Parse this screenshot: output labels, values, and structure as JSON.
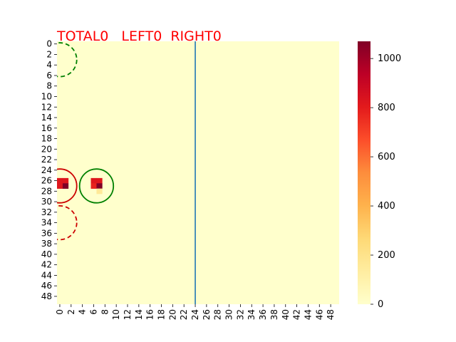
{
  "title": {
    "total": "TOTAL0",
    "left": "LEFT0",
    "right": "RIGHT0",
    "color": "#ff0000"
  },
  "chart_data": {
    "type": "heatmap",
    "rows": 50,
    "cols": 50,
    "xticks": [
      0,
      2,
      4,
      6,
      8,
      10,
      12,
      14,
      16,
      18,
      20,
      22,
      24,
      26,
      28,
      30,
      32,
      34,
      36,
      38,
      40,
      42,
      44,
      46,
      48
    ],
    "yticks": [
      0,
      2,
      4,
      6,
      8,
      10,
      12,
      14,
      16,
      18,
      20,
      22,
      24,
      26,
      28,
      30,
      32,
      34,
      36,
      38,
      40,
      42,
      44,
      46,
      48
    ],
    "colormap": "YlOrRd",
    "vmin": 0,
    "vmax": 1070,
    "colorbar_ticks": [
      0,
      200,
      400,
      600,
      800,
      1000
    ],
    "background_value": 0,
    "cells": [
      {
        "row": 26,
        "col": 0,
        "value": 820
      },
      {
        "row": 26,
        "col": 1,
        "value": 820
      },
      {
        "row": 27,
        "col": 0,
        "value": 820
      },
      {
        "row": 27,
        "col": 1,
        "value": 1070
      },
      {
        "row": 26,
        "col": 6,
        "value": 820
      },
      {
        "row": 26,
        "col": 7,
        "value": 820
      },
      {
        "row": 27,
        "col": 6,
        "value": 780
      },
      {
        "row": 27,
        "col": 7,
        "value": 1070
      },
      {
        "row": 28,
        "col": 7,
        "value": 160
      }
    ],
    "divider_line": {
      "x": 24.5,
      "color": "#1f77b4"
    },
    "circles": [
      {
        "name": "green-dashed",
        "cx": 0,
        "cy": 3,
        "r": 3,
        "color": "#008000",
        "dashed": true
      },
      {
        "name": "red-solid",
        "cx": 0,
        "cy": 27,
        "r": 3,
        "color": "#cc0000",
        "dashed": false
      },
      {
        "name": "green-solid",
        "cx": 6.5,
        "cy": 27,
        "r": 3,
        "color": "#008000",
        "dashed": false
      },
      {
        "name": "red-dashed",
        "cx": 0,
        "cy": 34,
        "r": 3,
        "color": "#cc0000",
        "dashed": true
      }
    ]
  }
}
